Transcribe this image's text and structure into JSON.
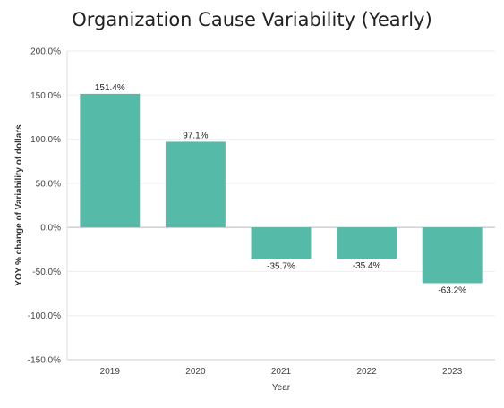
{
  "chart_data": {
    "type": "bar",
    "title": "Organization Cause Variability (Yearly)",
    "xlabel": "Year",
    "ylabel": "YOY % change of Variability of dollars",
    "categories": [
      "2019",
      "2020",
      "2021",
      "2022",
      "2023"
    ],
    "values": [
      151.4,
      97.1,
      -35.7,
      -35.4,
      -63.2
    ],
    "value_labels": [
      "151.4%",
      "97.1%",
      "-35.7%",
      "-35.4%",
      "-63.2%"
    ],
    "yticks": [
      200,
      150,
      100,
      50,
      0,
      -50,
      -100,
      -150
    ],
    "ytick_labels": [
      "200.0%",
      "150.0%",
      "100.0%",
      "50.0%",
      "0.0%",
      "-50.0%",
      "-100.0%",
      "-150.0%"
    ],
    "ylim": [
      -150,
      200
    ],
    "grid": true,
    "bar_color": "#55bba8"
  }
}
